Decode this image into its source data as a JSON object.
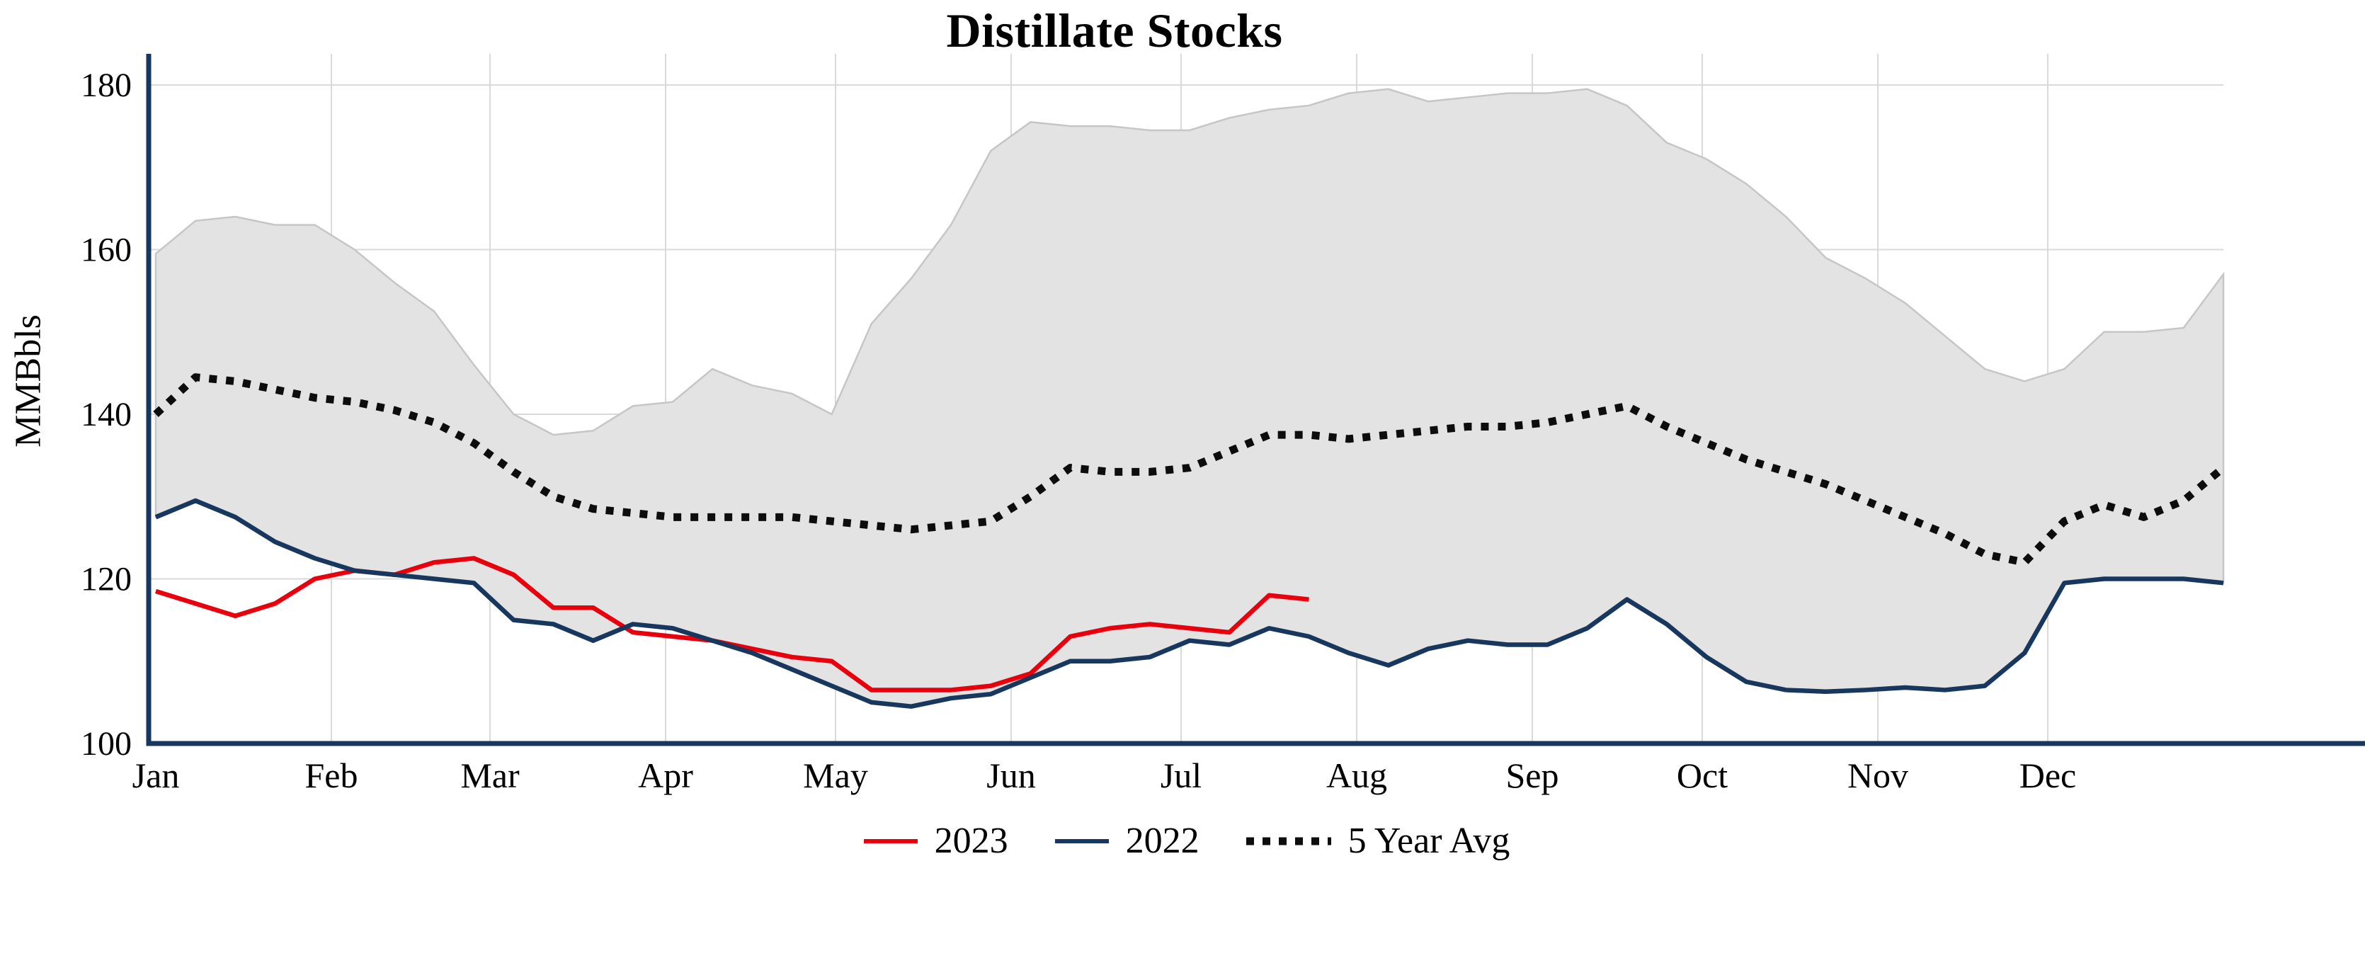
{
  "chart_data": {
    "type": "line",
    "title": "Distillate Stocks",
    "ylabel": "MMBbls",
    "ylim": [
      100,
      180
    ],
    "y_ticks": [
      100,
      120,
      140,
      160,
      180
    ],
    "x_tick_labels": [
      "Jan",
      "Feb",
      "Mar",
      "Apr",
      "May",
      "Jun",
      "Jul",
      "Aug",
      "Sep",
      "Oct",
      "Nov",
      "Dec"
    ],
    "x_tick_days": [
      0,
      31,
      59,
      90,
      120,
      151,
      181,
      212,
      243,
      273,
      304,
      334
    ],
    "x_total_days": 365,
    "points_per_year": 53,
    "sampling": "weekly",
    "grid": true,
    "legend_position": "bottom-center",
    "colors": {
      "axis": "#17375e",
      "grid": "#d9d9d9",
      "band_fill": "#e3e3e3",
      "band_edge": "#c6c6c6"
    },
    "band": {
      "name": "5 Year Range",
      "upper": [
        159.5,
        163.5,
        164,
        163,
        163,
        160,
        156,
        152.5,
        146,
        140,
        137.5,
        138,
        141,
        141.5,
        145.5,
        143.5,
        142.5,
        140,
        151,
        156.5,
        163,
        172,
        175.5,
        175,
        175,
        174.5,
        174.5,
        176,
        177,
        177.5,
        179,
        179.5,
        178,
        178.5,
        179,
        179,
        179.5,
        177.5,
        173,
        171,
        168,
        164,
        159,
        156.5,
        153.5,
        149.5,
        145.5,
        144,
        145.5,
        150,
        150,
        150.5,
        157
      ],
      "lower": [
        127.5,
        129.5,
        127.5,
        124.5,
        122.5,
        121,
        120.5,
        120,
        119.5,
        115,
        114.5,
        112.5,
        114.5,
        114,
        112.5,
        111,
        109,
        107,
        105,
        104.5,
        105.5,
        106,
        108,
        110,
        110,
        110.5,
        112.5,
        112,
        114,
        113,
        111,
        109.5,
        111.5,
        112.5,
        112,
        112,
        114,
        117.5,
        114.5,
        110.5,
        107.5,
        106.5,
        106.3,
        106.5,
        106.8,
        106.5,
        107,
        111,
        119.5,
        120,
        120,
        120,
        119.5
      ]
    },
    "series": [
      {
        "name": "2023",
        "color": "#e8000d",
        "style": "solid",
        "values": [
          118.5,
          117,
          115.5,
          117,
          120,
          121,
          120.5,
          122,
          122.5,
          120.5,
          116.5,
          116.5,
          113.5,
          113,
          112.5,
          111.5,
          110.5,
          110,
          106.5,
          106.5,
          106.5,
          107,
          108.5,
          113,
          114,
          114.5,
          114,
          113.5,
          118,
          117.5
        ]
      },
      {
        "name": "2022",
        "color": "#17375e",
        "style": "solid",
        "values": [
          127.5,
          129.5,
          127.5,
          124.5,
          122.5,
          121,
          120.5,
          120,
          119.5,
          115,
          114.5,
          112.5,
          114.5,
          114,
          112.5,
          111,
          109,
          107,
          105,
          104.5,
          105.5,
          106,
          108,
          110,
          110,
          110.5,
          112.5,
          112,
          114,
          113,
          111,
          109.5,
          111.5,
          112.5,
          112,
          112,
          114,
          117.5,
          114.5,
          110.5,
          107.5,
          106.5,
          106.3,
          106.5,
          106.8,
          106.5,
          107,
          111,
          119.5,
          120,
          120,
          120,
          119.5
        ]
      },
      {
        "name": "5 Year Avg",
        "color": "#0d0d0d",
        "style": "dotted",
        "values": [
          140,
          144.5,
          144,
          143,
          142,
          141.5,
          140.5,
          139,
          136.5,
          133,
          130,
          128.5,
          128,
          127.5,
          127.5,
          127.5,
          127.5,
          127,
          126.5,
          126,
          126.5,
          127,
          130,
          133.5,
          133,
          133,
          133.5,
          135.5,
          137.5,
          137.5,
          137,
          137.5,
          138,
          138.5,
          138.5,
          139,
          140,
          141,
          138.5,
          136.5,
          134.5,
          133,
          131.5,
          129.5,
          127.5,
          125.5,
          123,
          122,
          127,
          129,
          127.5,
          129.5,
          133.5
        ]
      }
    ]
  }
}
